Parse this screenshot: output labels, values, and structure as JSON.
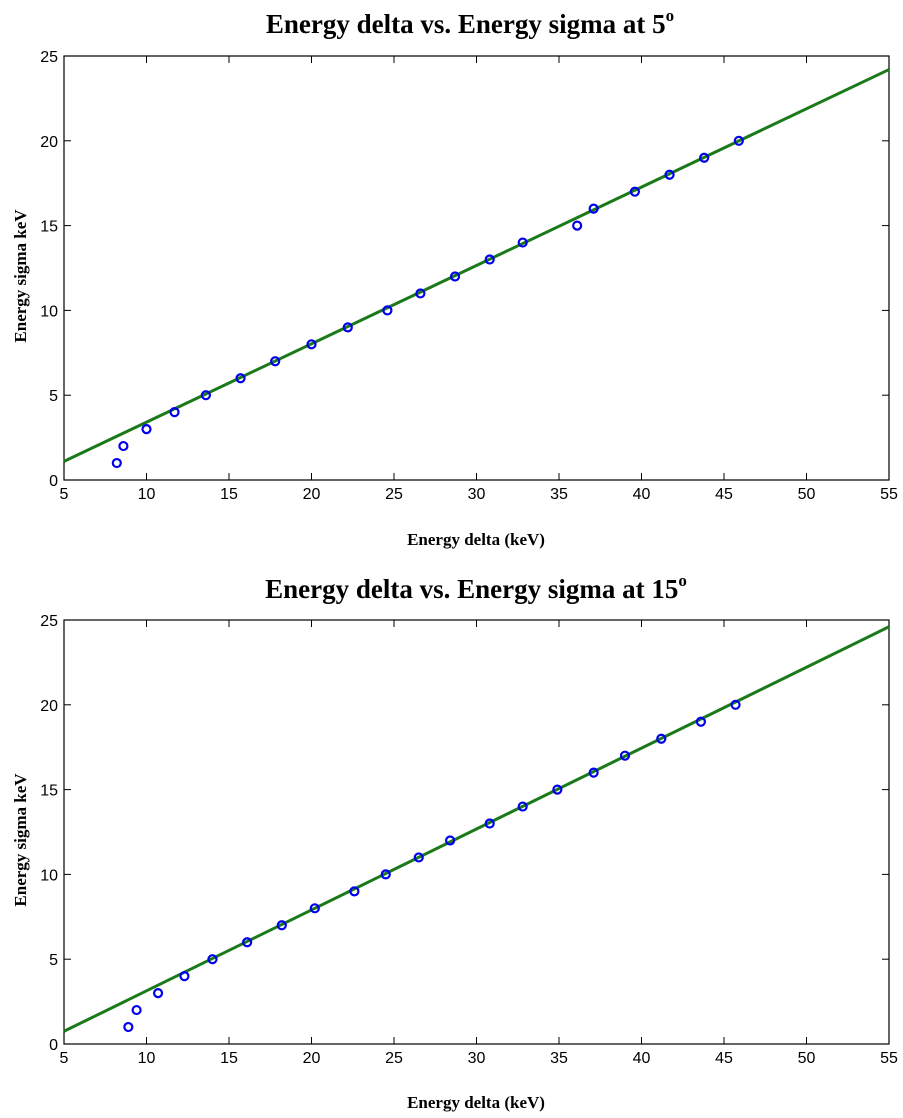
{
  "chart_data": [
    {
      "type": "scatter",
      "title": "Energy delta vs. Energy sigma at 5",
      "title_superscript": "o",
      "xlabel": "Energy delta (keV)",
      "ylabel": "Energy sigma keV",
      "xlim": [
        5,
        55
      ],
      "ylim": [
        0,
        25
      ],
      "xticks": [
        5,
        10,
        15,
        20,
        25,
        30,
        35,
        40,
        45,
        50,
        55
      ],
      "yticks": [
        0,
        5,
        10,
        15,
        20,
        25
      ],
      "grid": false,
      "colors": {
        "points": "#0000ee",
        "fit": "#1a7a1a"
      },
      "series": [
        {
          "marker": "circle",
          "x": [
            8.2,
            8.6,
            10.0,
            11.7,
            13.6,
            15.7,
            17.8,
            20.0,
            22.2,
            24.6,
            26.6,
            28.7,
            30.8,
            32.8,
            36.1,
            37.1,
            39.6,
            41.7,
            43.8,
            45.9
          ],
          "y": [
            1,
            2,
            3,
            4,
            5,
            6,
            7,
            8,
            9,
            10,
            11,
            12,
            13,
            14,
            15,
            16,
            17,
            18,
            19,
            20
          ]
        },
        {
          "type": "line",
          "x": [
            5,
            55
          ],
          "y": [
            1.1,
            24.2
          ]
        }
      ]
    },
    {
      "type": "scatter",
      "title": "Energy delta vs. Energy sigma at 15",
      "title_superscript": "o",
      "xlabel": "Energy delta (keV)",
      "ylabel": "Energy sigma keV",
      "xlim": [
        5,
        55
      ],
      "ylim": [
        0,
        25
      ],
      "xticks": [
        5,
        10,
        15,
        20,
        25,
        30,
        35,
        40,
        45,
        50,
        55
      ],
      "yticks": [
        0,
        5,
        10,
        15,
        20,
        25
      ],
      "grid": false,
      "colors": {
        "points": "#0000ee",
        "fit": "#1a7a1a"
      },
      "series": [
        {
          "marker": "circle",
          "x": [
            8.9,
            9.4,
            10.7,
            12.3,
            14.0,
            16.1,
            18.2,
            20.2,
            22.6,
            24.5,
            26.5,
            28.4,
            30.8,
            32.8,
            34.9,
            37.1,
            39.0,
            41.2,
            43.6,
            45.7
          ],
          "y": [
            1,
            2,
            3,
            4,
            5,
            6,
            7,
            8,
            9,
            10,
            11,
            12,
            13,
            14,
            15,
            16,
            17,
            18,
            19,
            20
          ]
        },
        {
          "type": "line",
          "x": [
            5,
            55
          ],
          "y": [
            0.75,
            24.6
          ]
        }
      ]
    }
  ]
}
